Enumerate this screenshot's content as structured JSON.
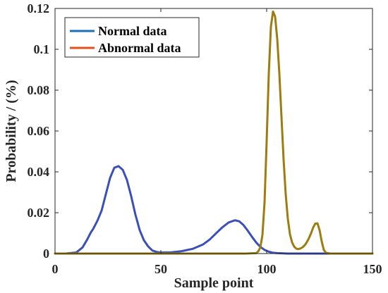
{
  "chart_data": {
    "type": "line",
    "title": "",
    "xlabel": "Sample point",
    "ylabel": "Probability / (%)",
    "xlim": [
      0,
      150
    ],
    "ylim": [
      0,
      0.12
    ],
    "xticks": [
      0,
      50,
      100,
      150
    ],
    "yticks": [
      0,
      0.02,
      0.04,
      0.06,
      0.08,
      0.1,
      0.12
    ],
    "xtick_labels": [
      "0",
      "50",
      "100",
      "150"
    ],
    "ytick_labels": [
      "0",
      "0.02",
      "0.04",
      "0.06",
      "0.08",
      "0.1",
      "0.12"
    ],
    "grid": false,
    "legend_position": "top-left",
    "series": [
      {
        "name": "Normal data",
        "color": "#3b4fb8",
        "x": [
          0,
          5,
          10,
          13,
          15,
          17,
          18,
          20,
          22,
          24,
          26,
          28,
          30,
          32,
          34,
          36,
          38,
          40,
          42,
          44,
          46,
          48,
          50,
          55,
          60,
          65,
          70,
          73,
          76,
          79,
          82,
          85,
          87,
          89,
          91,
          93,
          95,
          97,
          99,
          101,
          103,
          105,
          110,
          120,
          130,
          140,
          150
        ],
        "y": [
          0,
          0,
          0.0005,
          0.003,
          0.0065,
          0.0105,
          0.012,
          0.016,
          0.021,
          0.029,
          0.037,
          0.042,
          0.0428,
          0.041,
          0.036,
          0.028,
          0.019,
          0.0115,
          0.0065,
          0.0035,
          0.0015,
          0.0008,
          0.0005,
          0.0006,
          0.0012,
          0.0023,
          0.0045,
          0.0068,
          0.0098,
          0.0128,
          0.0152,
          0.0163,
          0.0158,
          0.014,
          0.0113,
          0.0083,
          0.0055,
          0.0033,
          0.0018,
          0.0009,
          0.0004,
          0.0002,
          0,
          0,
          0,
          0,
          0
        ]
      },
      {
        "name": "Abnormal data",
        "color": "#9b7d12",
        "x": [
          0,
          50,
          90,
          95,
          96,
          97,
          98,
          99,
          100,
          101,
          102,
          103,
          104,
          105,
          106,
          107,
          108,
          109,
          110,
          111,
          112,
          113,
          114,
          115,
          116,
          117,
          118,
          119,
          120,
          121,
          122,
          123,
          124,
          125,
          126,
          127,
          128,
          130,
          140,
          150
        ],
        "y": [
          0,
          0,
          0,
          0.0002,
          0.001,
          0.003,
          0.009,
          0.025,
          0.055,
          0.088,
          0.111,
          0.1185,
          0.116,
          0.105,
          0.088,
          0.067,
          0.046,
          0.029,
          0.017,
          0.0095,
          0.0055,
          0.0034,
          0.0024,
          0.0022,
          0.0025,
          0.0031,
          0.0041,
          0.0056,
          0.0076,
          0.01,
          0.0128,
          0.0147,
          0.0148,
          0.0115,
          0.006,
          0.0018,
          0.0004,
          0,
          0,
          0
        ]
      }
    ]
  },
  "legend": {
    "items": [
      {
        "label": "Normal data",
        "color": "#1f6fb5"
      },
      {
        "label": "Abnormal data",
        "color": "#e0521c"
      }
    ]
  }
}
